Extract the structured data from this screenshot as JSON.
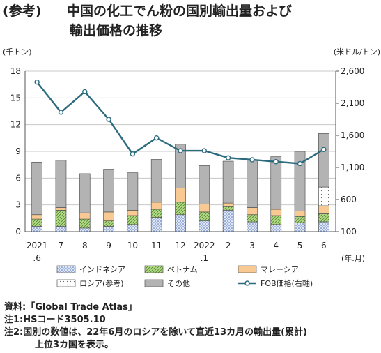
{
  "title": {
    "prefix": "(参考)",
    "line1": "中国の化工でん粉の国別輸出量および",
    "line2": "輸出価格の推移"
  },
  "chart_data": {
    "type": "bar",
    "subtype": "stacked bar + line (secondary axis)",
    "y_left_unit": "(千トン)",
    "y_right_unit": "(米ドル/トン)",
    "x_unit": "(年.月)",
    "ylim_left": [
      0,
      18
    ],
    "yticks_left": [
      "0",
      "3",
      "6",
      "9",
      "12",
      "15",
      "18"
    ],
    "ylim_right": [
      100,
      2600
    ],
    "yticks_right": [
      "100",
      "600",
      "1,100",
      "1,600",
      "2,100",
      "2,600"
    ],
    "grid": true,
    "legend_position": "bottom",
    "categories": [
      {
        "top": "2021",
        "bottom": ".6"
      },
      {
        "top": "7",
        "bottom": ""
      },
      {
        "top": "8",
        "bottom": ""
      },
      {
        "top": "9",
        "bottom": ""
      },
      {
        "top": "10",
        "bottom": ""
      },
      {
        "top": "11",
        "bottom": ""
      },
      {
        "top": "12",
        "bottom": ""
      },
      {
        "top": "2022",
        "bottom": ".1"
      },
      {
        "top": "2",
        "bottom": ""
      },
      {
        "top": "3",
        "bottom": ""
      },
      {
        "top": "4",
        "bottom": ""
      },
      {
        "top": "5",
        "bottom": ""
      },
      {
        "top": "6",
        "bottom": ""
      }
    ],
    "series": [
      {
        "name": "インドネシア",
        "pattern": "dots-blue",
        "color": "#c9d6ee",
        "values": [
          0.6,
          0.6,
          0.4,
          0.6,
          0.8,
          1.6,
          1.9,
          1.2,
          2.4,
          1.1,
          0.8,
          1.0,
          1.1
        ]
      },
      {
        "name": "ベトナム",
        "pattern": "hatch-green",
        "color": "#8fc25a",
        "values": [
          0.8,
          1.8,
          1.0,
          0.6,
          1.0,
          0.9,
          1.4,
          1.0,
          0.4,
          0.8,
          1.0,
          0.7,
          0.9
        ]
      },
      {
        "name": "マレーシア",
        "pattern": "solid",
        "color": "#f8c992",
        "values": [
          0.5,
          0.3,
          0.7,
          1.0,
          0.6,
          0.8,
          1.6,
          0.9,
          0.4,
          0.8,
          0.7,
          0.6,
          0.9
        ]
      },
      {
        "name": "ロシア(参考)",
        "pattern": "dots-white",
        "color": "#ffffff",
        "values": [
          0,
          0,
          0,
          0,
          0,
          0,
          0,
          0,
          0,
          0,
          0,
          0,
          2.1
        ]
      },
      {
        "name": "その他",
        "pattern": "solid",
        "color": "#b3b3b3",
        "values": [
          5.9,
          5.3,
          4.4,
          4.8,
          4.2,
          4.8,
          4.9,
          4.3,
          4.7,
          5.3,
          5.9,
          6.7,
          6.0
        ]
      }
    ],
    "line": {
      "name": "FOB価格(右軸)",
      "color": "#2c6b7e",
      "axis": "right",
      "values": [
        2430,
        1960,
        2280,
        1850,
        1310,
        1560,
        1360,
        1360,
        1250,
        1220,
        1190,
        1160,
        1380
      ]
    }
  },
  "notes": {
    "source": "資料:「Global Trade Atlas」",
    "note1": "注1:HSコード3505.10",
    "note2_line1": "注2:国別の数値は、22年6月のロシアを除いて直近13カ月の輸出量(累計)",
    "note2_line2": "上位3カ国を表示。"
  }
}
